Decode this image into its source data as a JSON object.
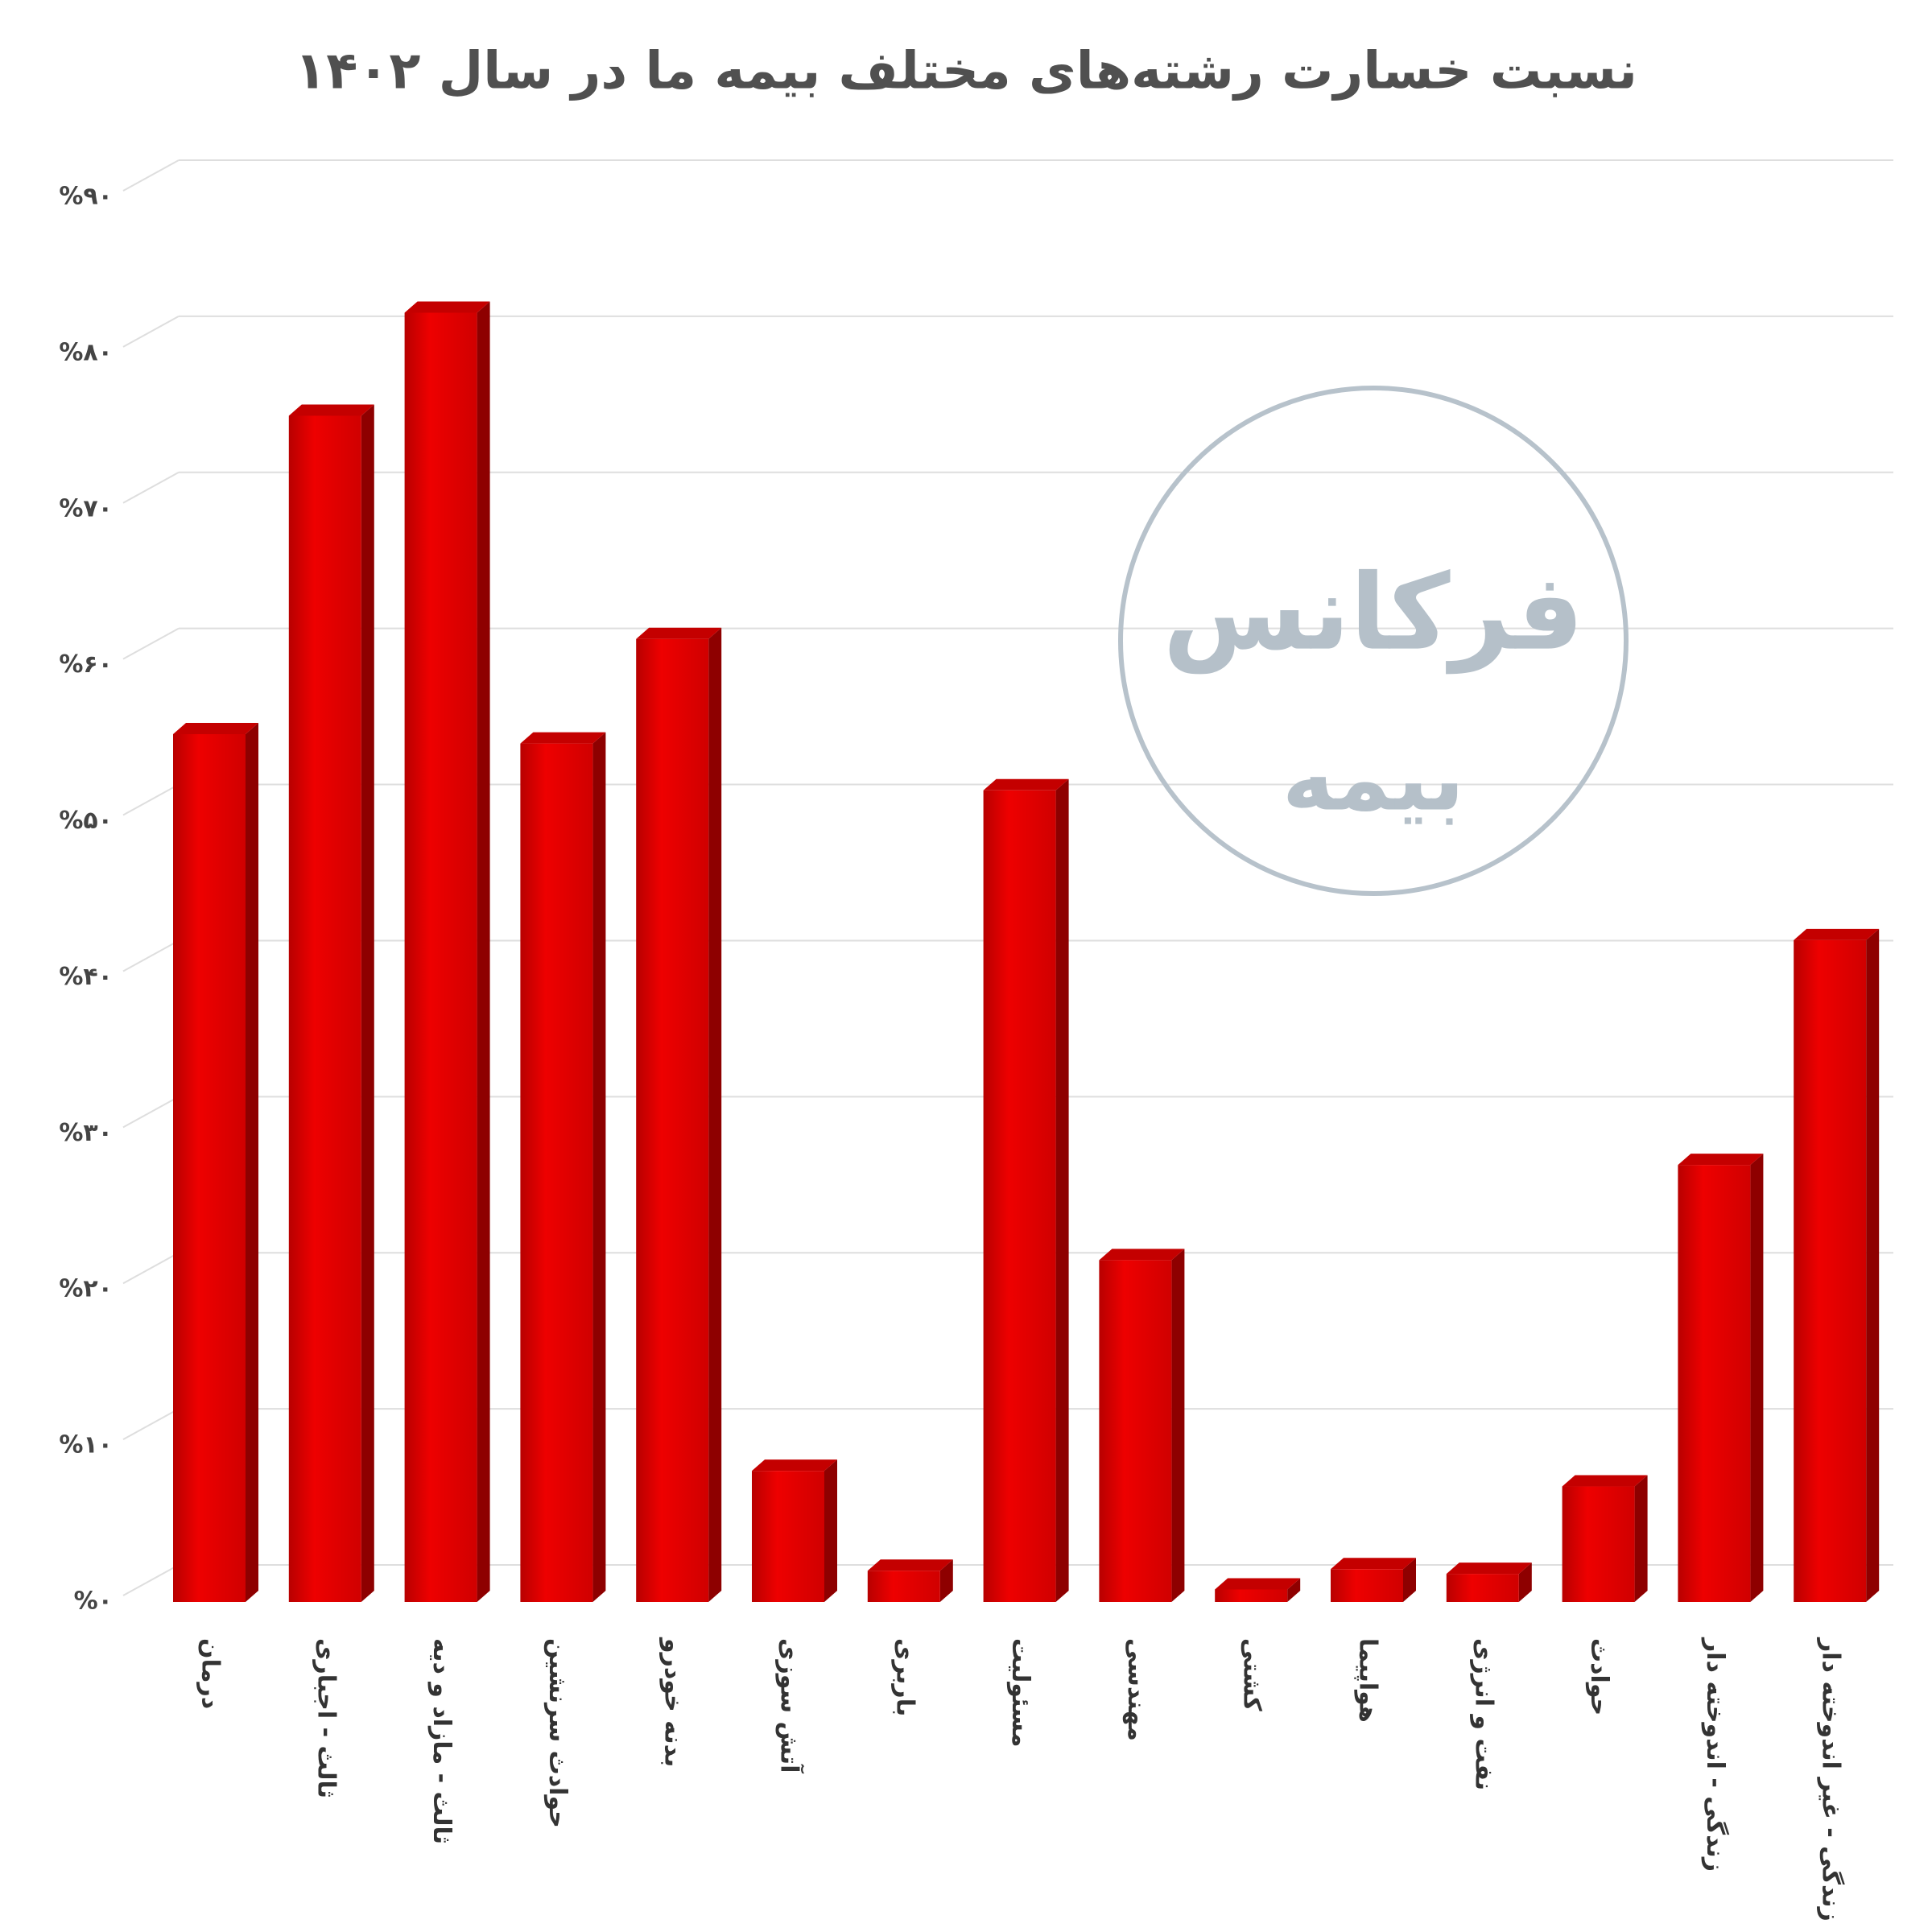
{
  "chart_data": {
    "type": "bar3d",
    "title": "نسبت خسارت رشته‌های مختلف بیمه ما در سال ۱۴۰۲",
    "watermark": [
      "فرکانس",
      "بیمه"
    ],
    "categories": [
      "درمان",
      "ثالث - اجباری",
      "ثالث - مازاد و دیه",
      "حوادث سرنشین",
      "بدنه خودرو",
      "آتش سوزی",
      "باربری",
      "مسئولیت",
      "مهندسی",
      "کشتی",
      "هواپیما",
      "نفت و انرژی",
      "حوادث",
      "زندگی - اندوخته دار",
      "زندگی - غیر اندوخته دار"
    ],
    "values": [
      55.6,
      76,
      82.6,
      55,
      61.7,
      8.4,
      2,
      52,
      21.9,
      0.8,
      2.1,
      1.8,
      7.4,
      28,
      42.4
    ],
    "color": "#e00000",
    "ylim": [
      0,
      90
    ],
    "yticks": [
      {
        "value": 0,
        "label": "%۰"
      },
      {
        "value": 10,
        "label": "%۱۰"
      },
      {
        "value": 20,
        "label": "%۲۰"
      },
      {
        "value": 30,
        "label": "%۳۰"
      },
      {
        "value": 40,
        "label": "%۴۰"
      },
      {
        "value": 50,
        "label": "%۵۰"
      },
      {
        "value": 60,
        "label": "%۶۰"
      },
      {
        "value": 70,
        "label": "%۷۰"
      },
      {
        "value": 80,
        "label": "%۸۰"
      },
      {
        "value": 90,
        "label": "%۹۰"
      }
    ],
    "grid": true
  }
}
